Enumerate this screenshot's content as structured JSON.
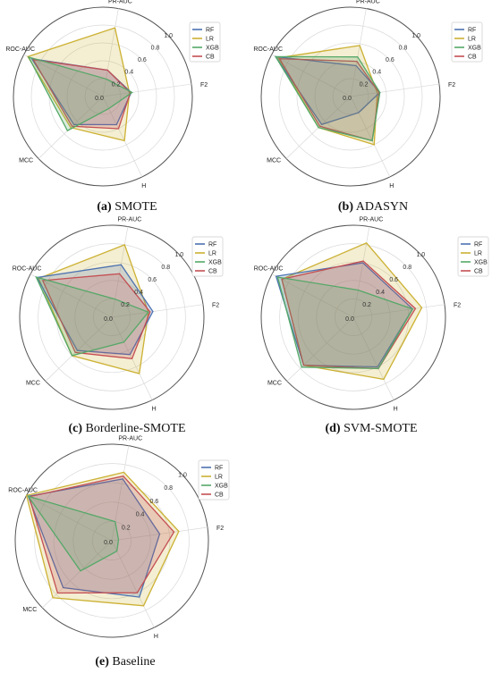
{
  "axis_labels": [
    "PR-AUC",
    "F2",
    "H",
    "MCC",
    "ROC-AUC"
  ],
  "radial_ticks": [
    "0.0",
    "0.2",
    "0.4",
    "0.6",
    "0.8",
    "1.0"
  ],
  "legend": [
    "RF",
    "LR",
    "XGB",
    "CB"
  ],
  "colors": {
    "RF": "#4c72b0",
    "LR": "#ccb133",
    "XGB": "#55a868",
    "CB": "#c44e52"
  },
  "captions": [
    {
      "letter": "(a)",
      "text": " SMOTE"
    },
    {
      "letter": "(b)",
      "text": " ADASYN"
    },
    {
      "letter": "(c)",
      "text": " Borderline-SMOTE"
    },
    {
      "letter": "(d)",
      "text": " SVM-SMOTE"
    },
    {
      "letter": "(e)",
      "text": " Baseline"
    }
  ],
  "chart_data": [
    {
      "type": "radar",
      "caption": "(a) SMOTE",
      "rlim": [
        0,
        1
      ],
      "categories": [
        "PR-AUC",
        "F2",
        "H",
        "MCC",
        "ROC-AUC"
      ],
      "series": [
        {
          "name": "RF",
          "values": [
            0.3,
            0.32,
            0.35,
            0.45,
            0.9
          ]
        },
        {
          "name": "LR",
          "values": [
            0.78,
            0.3,
            0.55,
            0.5,
            0.95
          ]
        },
        {
          "name": "XGB",
          "values": [
            0.2,
            0.33,
            0.15,
            0.55,
            0.94
          ]
        },
        {
          "name": "CB",
          "values": [
            0.3,
            0.31,
            0.4,
            0.48,
            0.88
          ]
        }
      ]
    },
    {
      "type": "radar",
      "caption": "(b) ADASYN",
      "rlim": [
        0,
        1
      ],
      "categories": [
        "PR-AUC",
        "F2",
        "H",
        "MCC",
        "ROC-AUC"
      ],
      "series": [
        {
          "name": "RF",
          "values": [
            0.35,
            0.33,
            0.2,
            0.45,
            0.95
          ]
        },
        {
          "name": "LR",
          "values": [
            0.58,
            0.3,
            0.6,
            0.5,
            0.92
          ]
        },
        {
          "name": "XGB",
          "values": [
            0.45,
            0.33,
            0.55,
            0.5,
            0.95
          ]
        },
        {
          "name": "CB",
          "values": [
            0.4,
            0.32,
            0.55,
            0.48,
            0.9
          ]
        }
      ]
    },
    {
      "type": "radar",
      "caption": "(c) Borderline-SMOTE",
      "rlim": [
        0,
        1
      ],
      "categories": [
        "PR-AUC",
        "F2",
        "H",
        "MCC",
        "ROC-AUC"
      ],
      "series": [
        {
          "name": "RF",
          "values": [
            0.58,
            0.45,
            0.45,
            0.52,
            0.92
          ]
        },
        {
          "name": "LR",
          "values": [
            0.8,
            0.4,
            0.68,
            0.6,
            0.9
          ]
        },
        {
          "name": "XGB",
          "values": [
            0.2,
            0.4,
            0.3,
            0.6,
            0.93
          ]
        },
        {
          "name": "CB",
          "values": [
            0.48,
            0.42,
            0.5,
            0.55,
            0.85
          ]
        }
      ]
    },
    {
      "type": "radar",
      "caption": "(d) SVM-SMOTE",
      "rlim": [
        0,
        1
      ],
      "categories": [
        "PR-AUC",
        "F2",
        "H",
        "MCC",
        "ROC-AUC"
      ],
      "series": [
        {
          "name": "RF",
          "values": [
            0.6,
            0.65,
            0.6,
            0.75,
            0.95
          ]
        },
        {
          "name": "LR",
          "values": [
            0.82,
            0.75,
            0.75,
            0.75,
            0.88
          ]
        },
        {
          "name": "XGB",
          "values": [
            0.3,
            0.65,
            0.62,
            0.78,
            0.93
          ]
        },
        {
          "name": "CB",
          "values": [
            0.62,
            0.68,
            0.62,
            0.75,
            0.88
          ]
        }
      ]
    },
    {
      "type": "radar",
      "caption": "(e) Baseline",
      "rlim": [
        0,
        1
      ],
      "categories": [
        "PR-AUC",
        "F2",
        "H",
        "MCC",
        "ROC-AUC"
      ],
      "series": [
        {
          "name": "RF",
          "values": [
            0.65,
            0.5,
            0.65,
            0.7,
            0.98
          ]
        },
        {
          "name": "LR",
          "values": [
            0.72,
            0.7,
            0.75,
            0.85,
            1.0
          ]
        },
        {
          "name": "XGB",
          "values": [
            0.2,
            0.07,
            0.12,
            0.45,
            0.98
          ]
        },
        {
          "name": "CB",
          "values": [
            0.68,
            0.65,
            0.6,
            0.78,
            0.97
          ]
        }
      ]
    }
  ]
}
